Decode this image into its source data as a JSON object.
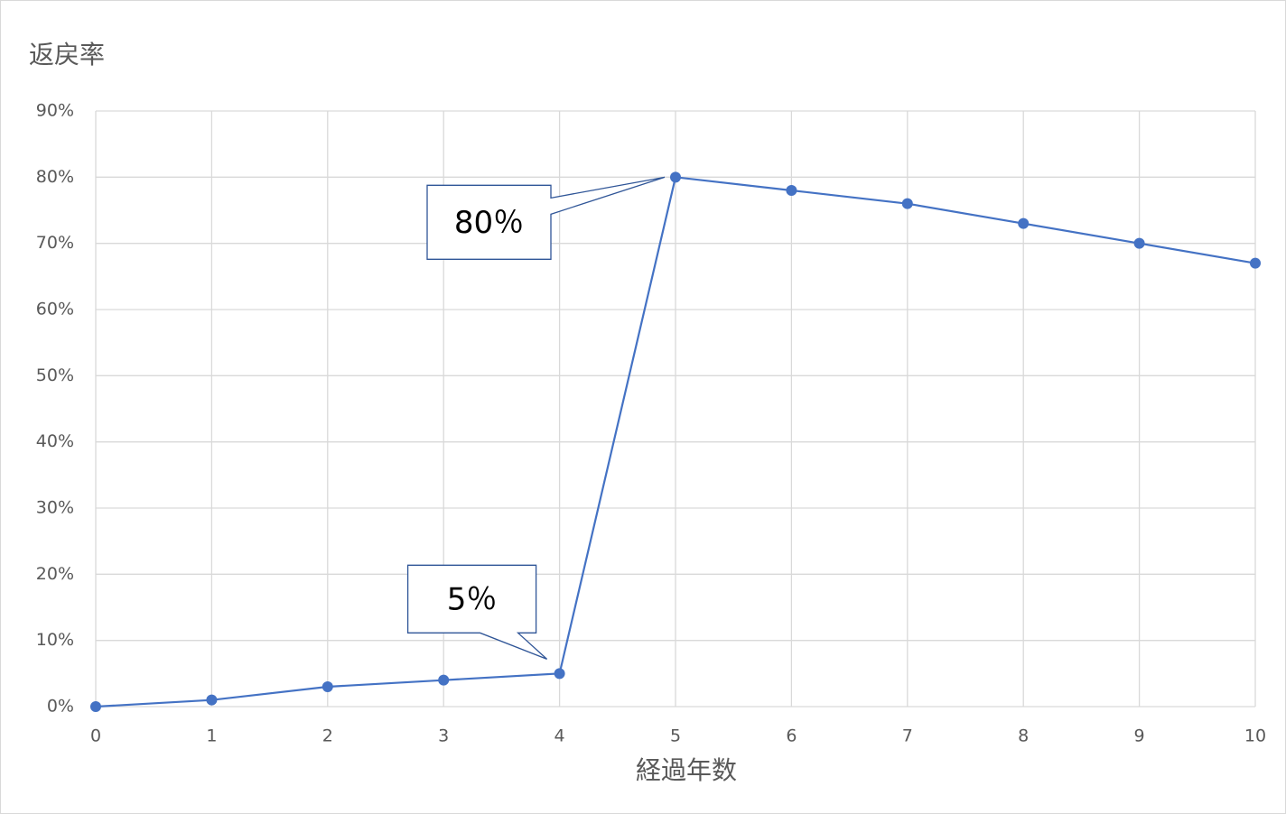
{
  "chart_data": {
    "type": "line",
    "y_label": "返戻率",
    "x_label": "経過年数",
    "x": [
      0,
      1,
      2,
      3,
      4,
      5,
      6,
      7,
      8,
      9,
      10
    ],
    "values": [
      0,
      1,
      3,
      4,
      5,
      80,
      78,
      76,
      73,
      70,
      67
    ],
    "value_labels": [
      null,
      null,
      null,
      null,
      "5％",
      "80％",
      null,
      null,
      null,
      null,
      null
    ],
    "color": "#4472c4",
    "xlim": [
      0,
      10
    ],
    "xticks": [
      0,
      1,
      2,
      3,
      4,
      5,
      6,
      7,
      8,
      9,
      10
    ],
    "ylim": [
      0,
      90
    ],
    "yticks": [
      {
        "value": 0,
        "label": "0%"
      },
      {
        "value": 10,
        "label": "10%"
      },
      {
        "value": 20,
        "label": "20%"
      },
      {
        "value": 30,
        "label": "30%"
      },
      {
        "value": 40,
        "label": "40%"
      },
      {
        "value": 50,
        "label": "50%"
      },
      {
        "value": 60,
        "label": "60%"
      },
      {
        "value": 70,
        "label": "70%"
      },
      {
        "value": 80,
        "label": "80%"
      },
      {
        "value": 90,
        "label": "90%"
      }
    ],
    "grid": true
  }
}
